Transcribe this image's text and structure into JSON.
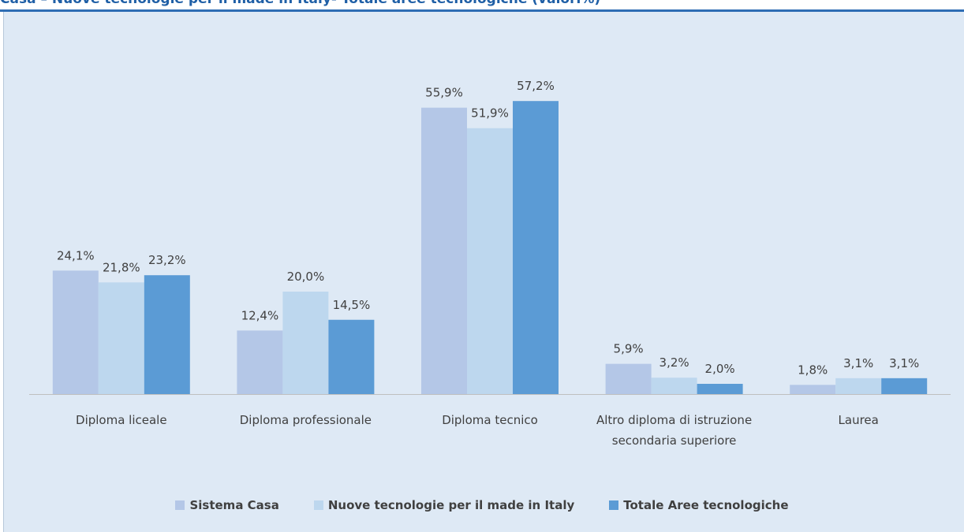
{
  "chart_data": {
    "type": "bar",
    "title": "Casa – Nuove tecnologie per il made in Italy- Totale aree tecnologiche (valori%)",
    "categories": [
      "Diploma liceale",
      "Diploma professionale",
      "Diploma tecnico",
      "Altro diploma di istruzione secondaria superiore",
      "Laurea"
    ],
    "series": [
      {
        "name": "Sistema Casa",
        "color": "#b4c7e7",
        "values": [
          24.1,
          12.4,
          55.9,
          5.9,
          1.8
        ],
        "value_labels": [
          "24,1%",
          "12,4%",
          "55,9%",
          "5,9%",
          "1,8%"
        ]
      },
      {
        "name": "Nuove tecnologie per il made in Italy",
        "color": "#bdd7ee",
        "values": [
          21.8,
          20.0,
          51.9,
          3.2,
          3.1
        ],
        "value_labels": [
          "21,8%",
          "20,0%",
          "51,9%",
          "3,2%",
          "3,1%"
        ]
      },
      {
        "name": "Totale Aree tecnologiche",
        "color": "#5b9bd5",
        "values": [
          23.2,
          14.5,
          57.2,
          2.0,
          3.1
        ],
        "value_labels": [
          "23,2%",
          "14,5%",
          "57,2%",
          "2,0%",
          "3,1%"
        ]
      }
    ]
  }
}
